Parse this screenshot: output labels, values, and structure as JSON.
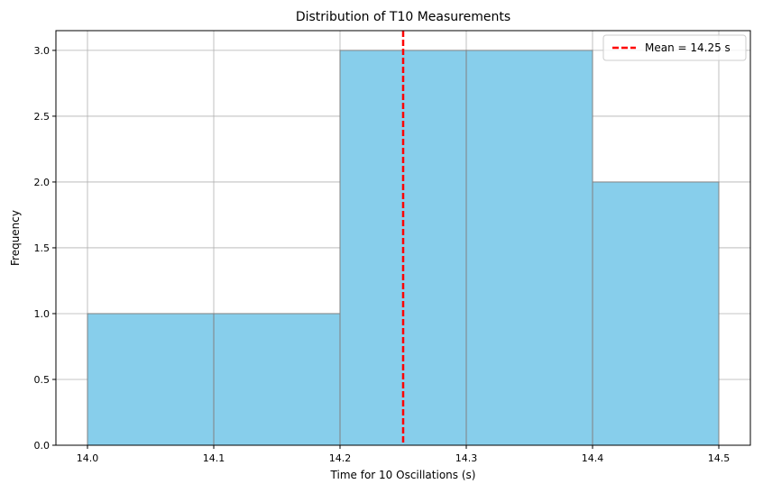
{
  "chart_data": {
    "type": "bar",
    "title": "Distribution of T10 Measurements",
    "xlabel": "Time for 10 Oscillations (s)",
    "ylabel": "Frequency",
    "bins": [
      {
        "start": 14.0,
        "end": 14.1,
        "count": 1
      },
      {
        "start": 14.1,
        "end": 14.2,
        "count": 1
      },
      {
        "start": 14.2,
        "end": 14.3,
        "count": 3
      },
      {
        "start": 14.3,
        "end": 14.4,
        "count": 3
      },
      {
        "start": 14.4,
        "end": 14.5,
        "count": 2
      }
    ],
    "xlim": [
      13.975,
      14.525
    ],
    "ylim": [
      0,
      3.15
    ],
    "xticks": [
      "14.0",
      "14.1",
      "14.2",
      "14.3",
      "14.4",
      "14.5"
    ],
    "xtick_values": [
      14.0,
      14.1,
      14.2,
      14.3,
      14.4,
      14.5
    ],
    "yticks": [
      "0.0",
      "0.5",
      "1.0",
      "1.5",
      "2.0",
      "2.5",
      "3.0"
    ],
    "ytick_values": [
      0,
      0.5,
      1.0,
      1.5,
      2.0,
      2.5,
      3.0
    ],
    "mean_line": {
      "value": 14.25,
      "label": "Mean = 14.25 s",
      "color": "#ff0000"
    },
    "bar_color": "#87ceeb",
    "bar_edge_color": "#808080",
    "grid": true,
    "legend_position": "top-right"
  }
}
